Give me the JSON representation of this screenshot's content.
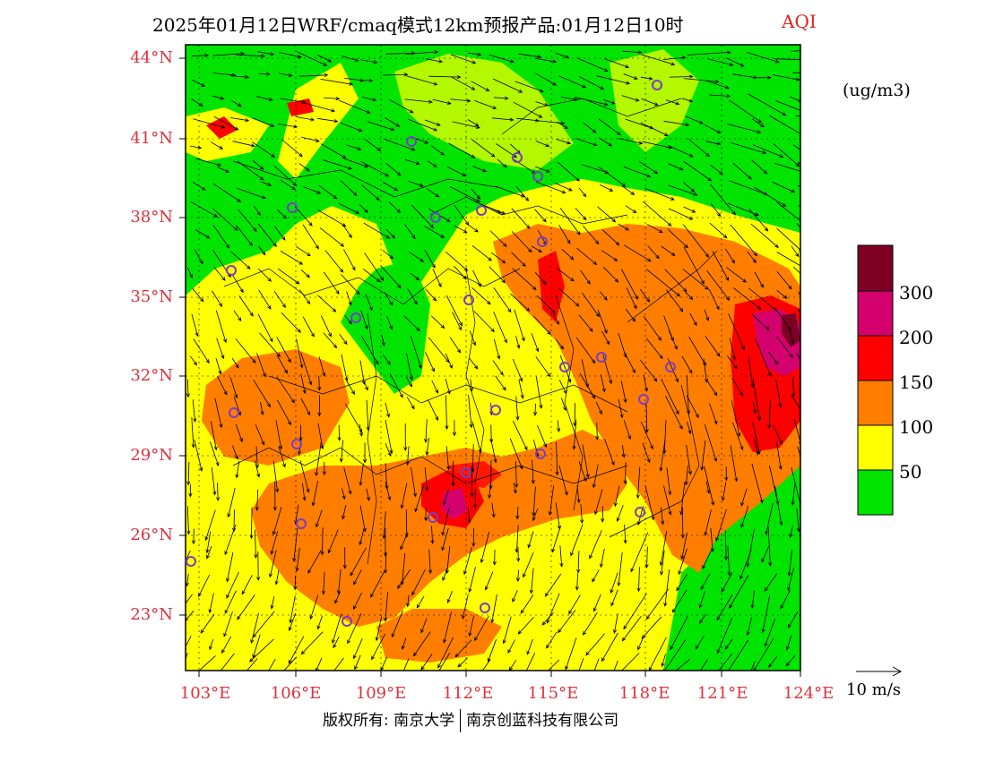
{
  "title": {
    "main": "2025年01月12日WRF/cmaq模式12km预报产品:01月12日10时",
    "tag": "AQI"
  },
  "latitude_labels": [
    "44°N",
    "41°N",
    "38°N",
    "35°N",
    "32°N",
    "29°N",
    "26°N",
    "23°N"
  ],
  "longitude_labels": [
    "103°E",
    "106°E",
    "109°E",
    "112°E",
    "115°E",
    "118°E",
    "121°E",
    "124°E"
  ],
  "legend": {
    "unit": "(ug/m3)",
    "levels": [
      {
        "label": "",
        "color": "#00e400"
      },
      {
        "label": "50",
        "color": "#ffff00"
      },
      {
        "label": "100",
        "color": "#ff7e00"
      },
      {
        "label": "150",
        "color": "#ff0000"
      },
      {
        "label": "200",
        "color": "#d4006e"
      },
      {
        "label": "300",
        "color": "#7e0023"
      }
    ]
  },
  "wind_reference": "10 m/s",
  "footer": {
    "left": "版权所有: 南京大学",
    "right": "南京创蓝科技有限公司"
  },
  "colors": {
    "good": "#00e400",
    "moderate": "#ffff00",
    "sensitive": "#ff7e00",
    "unhealthy": "#ff0000",
    "very_unhealthy": "#d4006e",
    "hazardous": "#7e0023",
    "label_red": "#e0303a",
    "city_marker": "#7a3cc8"
  }
}
